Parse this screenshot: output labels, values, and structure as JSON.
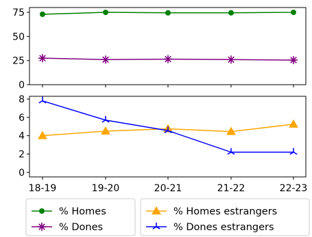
{
  "chart_data": [
    {
      "type": "line",
      "categories": [
        "18-19",
        "19-20",
        "20-21",
        "21-22",
        "22-23"
      ],
      "ylim": [
        0,
        80
      ],
      "yticks": [
        0,
        25,
        50,
        75
      ],
      "grid": false,
      "series": [
        {
          "name": "% Homes",
          "color": "#008000",
          "marker": "circle",
          "values": [
            73,
            75,
            74.5,
            74.5,
            75
          ]
        },
        {
          "name": "% Dones",
          "color": "#800080",
          "marker": "star",
          "values": [
            27.5,
            26,
            26.5,
            26,
            25.5
          ]
        }
      ]
    },
    {
      "type": "line",
      "categories": [
        "18-19",
        "19-20",
        "20-21",
        "21-22",
        "22-23"
      ],
      "ylim": [
        -0.5,
        8.3
      ],
      "yticks": [
        0,
        2,
        4,
        6,
        8
      ],
      "grid": false,
      "series": [
        {
          "name": "% Homes estrangers",
          "color": "#ffa500",
          "marker": "triangle",
          "values": [
            4.0,
            4.5,
            4.75,
            4.45,
            5.25
          ]
        },
        {
          "name": "% Dones estrangers",
          "color": "#0000ff",
          "marker": "tri",
          "values": [
            7.8,
            5.7,
            4.55,
            2.2,
            2.2
          ]
        }
      ]
    }
  ],
  "legend": {
    "placement": "bottom",
    "columns": [
      [
        "% Homes",
        "% Dones"
      ],
      [
        "% Homes estrangers",
        "% Dones estrangers"
      ]
    ]
  }
}
